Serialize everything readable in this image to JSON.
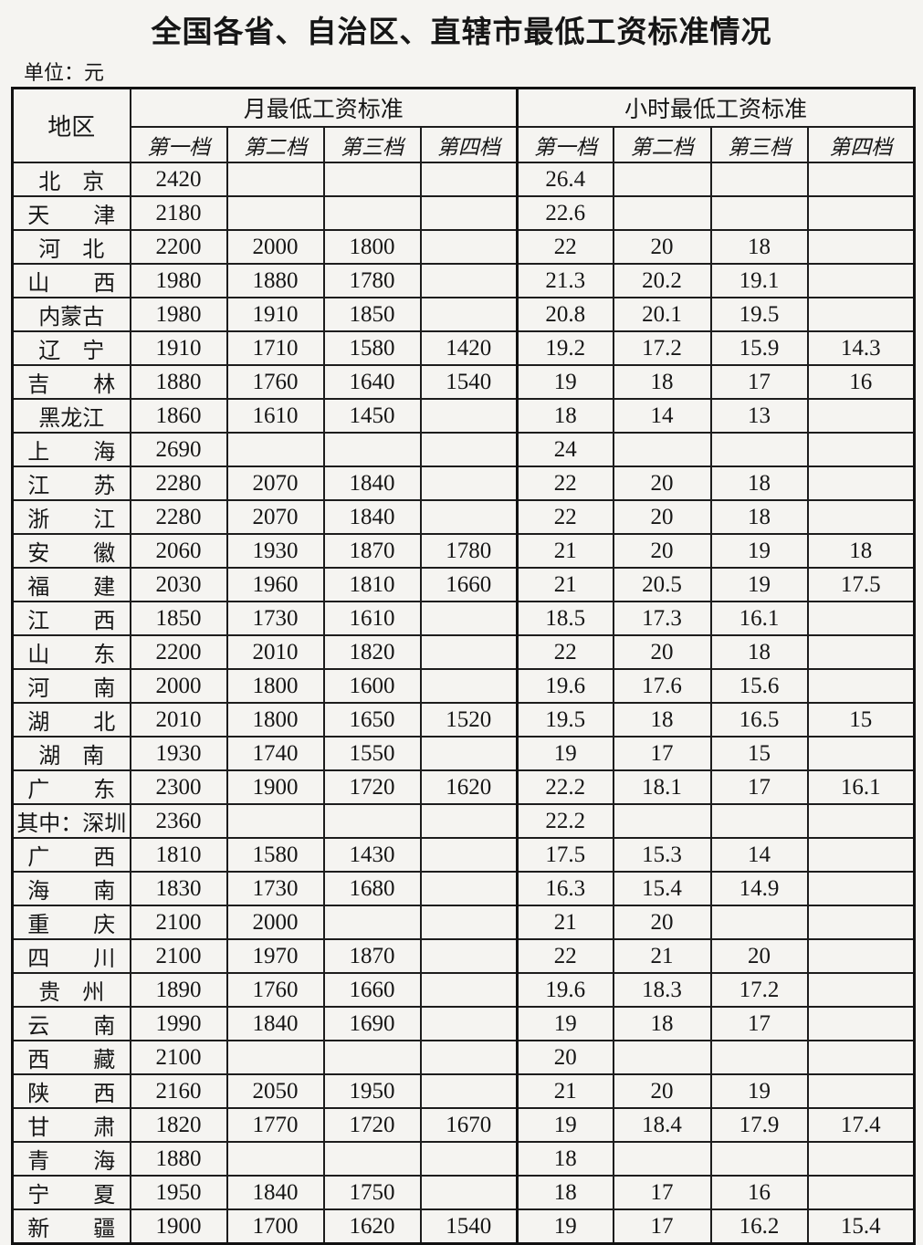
{
  "title": "全国各省、自治区、直辖市最低工资标准情况",
  "unit_label": "单位：元",
  "table": {
    "region_header": "地区",
    "monthly_header": "月最低工资标准",
    "hourly_header": "小时最低工资标准",
    "tier_headers": [
      "第一档",
      "第二档",
      "第三档",
      "第四档"
    ],
    "rows": [
      {
        "region": "北　京",
        "monthly": [
          "2420",
          "",
          "",
          ""
        ],
        "hourly": [
          "26.4",
          "",
          "",
          ""
        ]
      },
      {
        "region": "天　　津",
        "monthly": [
          "2180",
          "",
          "",
          ""
        ],
        "hourly": [
          "22.6",
          "",
          "",
          ""
        ]
      },
      {
        "region": "河　北",
        "monthly": [
          "2200",
          "2000",
          "1800",
          ""
        ],
        "hourly": [
          "22",
          "20",
          "18",
          ""
        ]
      },
      {
        "region": "山　　西",
        "monthly": [
          "1980",
          "1880",
          "1780",
          ""
        ],
        "hourly": [
          "21.3",
          "20.2",
          "19.1",
          ""
        ]
      },
      {
        "region": "内蒙古",
        "monthly": [
          "1980",
          "1910",
          "1850",
          ""
        ],
        "hourly": [
          "20.8",
          "20.1",
          "19.5",
          ""
        ]
      },
      {
        "region": "辽　宁",
        "monthly": [
          "1910",
          "1710",
          "1580",
          "1420"
        ],
        "hourly": [
          "19.2",
          "17.2",
          "15.9",
          "14.3"
        ]
      },
      {
        "region": "吉　　林",
        "monthly": [
          "1880",
          "1760",
          "1640",
          "1540"
        ],
        "hourly": [
          "19",
          "18",
          "17",
          "16"
        ]
      },
      {
        "region": "黑龙江",
        "monthly": [
          "1860",
          "1610",
          "1450",
          ""
        ],
        "hourly": [
          "18",
          "14",
          "13",
          ""
        ]
      },
      {
        "region": "上　　海",
        "monthly": [
          "2690",
          "",
          "",
          ""
        ],
        "hourly": [
          "24",
          "",
          "",
          ""
        ]
      },
      {
        "region": "江　　苏",
        "monthly": [
          "2280",
          "2070",
          "1840",
          ""
        ],
        "hourly": [
          "22",
          "20",
          "18",
          ""
        ]
      },
      {
        "region": "浙　　江",
        "monthly": [
          "2280",
          "2070",
          "1840",
          ""
        ],
        "hourly": [
          "22",
          "20",
          "18",
          ""
        ]
      },
      {
        "region": "安　　徽",
        "monthly": [
          "2060",
          "1930",
          "1870",
          "1780"
        ],
        "hourly": [
          "21",
          "20",
          "19",
          "18"
        ]
      },
      {
        "region": "福　　建",
        "monthly": [
          "2030",
          "1960",
          "1810",
          "1660"
        ],
        "hourly": [
          "21",
          "20.5",
          "19",
          "17.5"
        ]
      },
      {
        "region": "江　　西",
        "monthly": [
          "1850",
          "1730",
          "1610",
          ""
        ],
        "hourly": [
          "18.5",
          "17.3",
          "16.1",
          ""
        ]
      },
      {
        "region": "山　　东",
        "monthly": [
          "2200",
          "2010",
          "1820",
          ""
        ],
        "hourly": [
          "22",
          "20",
          "18",
          ""
        ]
      },
      {
        "region": "河　　南",
        "monthly": [
          "2000",
          "1800",
          "1600",
          ""
        ],
        "hourly": [
          "19.6",
          "17.6",
          "15.6",
          ""
        ]
      },
      {
        "region": "湖　　北",
        "monthly": [
          "2010",
          "1800",
          "1650",
          "1520"
        ],
        "hourly": [
          "19.5",
          "18",
          "16.5",
          "15"
        ]
      },
      {
        "region": "湖　南",
        "monthly": [
          "1930",
          "1740",
          "1550",
          ""
        ],
        "hourly": [
          "19",
          "17",
          "15",
          ""
        ]
      },
      {
        "region": "广　　东",
        "monthly": [
          "2300",
          "1900",
          "1720",
          "1620"
        ],
        "hourly": [
          "22.2",
          "18.1",
          "17",
          "16.1"
        ]
      },
      {
        "region": "其中：深圳",
        "monthly": [
          "2360",
          "",
          "",
          ""
        ],
        "hourly": [
          "22.2",
          "",
          "",
          ""
        ]
      },
      {
        "region": "广　　西",
        "monthly": [
          "1810",
          "1580",
          "1430",
          ""
        ],
        "hourly": [
          "17.5",
          "15.3",
          "14",
          ""
        ]
      },
      {
        "region": "海　　南",
        "monthly": [
          "1830",
          "1730",
          "1680",
          ""
        ],
        "hourly": [
          "16.3",
          "15.4",
          "14.9",
          ""
        ]
      },
      {
        "region": "重　　庆",
        "monthly": [
          "2100",
          "2000",
          "",
          ""
        ],
        "hourly": [
          "21",
          "20",
          "",
          ""
        ]
      },
      {
        "region": "四　　川",
        "monthly": [
          "2100",
          "1970",
          "1870",
          ""
        ],
        "hourly": [
          "22",
          "21",
          "20",
          ""
        ]
      },
      {
        "region": "贵　州",
        "monthly": [
          "1890",
          "1760",
          "1660",
          ""
        ],
        "hourly": [
          "19.6",
          "18.3",
          "17.2",
          ""
        ]
      },
      {
        "region": "云　　南",
        "monthly": [
          "1990",
          "1840",
          "1690",
          ""
        ],
        "hourly": [
          "19",
          "18",
          "17",
          ""
        ]
      },
      {
        "region": "西　　藏",
        "monthly": [
          "2100",
          "",
          "",
          ""
        ],
        "hourly": [
          "20",
          "",
          "",
          ""
        ]
      },
      {
        "region": "陕　　西",
        "monthly": [
          "2160",
          "2050",
          "1950",
          ""
        ],
        "hourly": [
          "21",
          "20",
          "19",
          ""
        ]
      },
      {
        "region": "甘　　肃",
        "monthly": [
          "1820",
          "1770",
          "1720",
          "1670"
        ],
        "hourly": [
          "19",
          "18.4",
          "17.9",
          "17.4"
        ]
      },
      {
        "region": "青　　海",
        "monthly": [
          "1880",
          "",
          "",
          ""
        ],
        "hourly": [
          "18",
          "",
          "",
          ""
        ]
      },
      {
        "region": "宁　　夏",
        "monthly": [
          "1950",
          "1840",
          "1750",
          ""
        ],
        "hourly": [
          "18",
          "17",
          "16",
          ""
        ]
      },
      {
        "region": "新　　疆",
        "monthly": [
          "1900",
          "1700",
          "1620",
          "1540"
        ],
        "hourly": [
          "19",
          "17",
          "16.2",
          "15.4"
        ]
      }
    ]
  }
}
